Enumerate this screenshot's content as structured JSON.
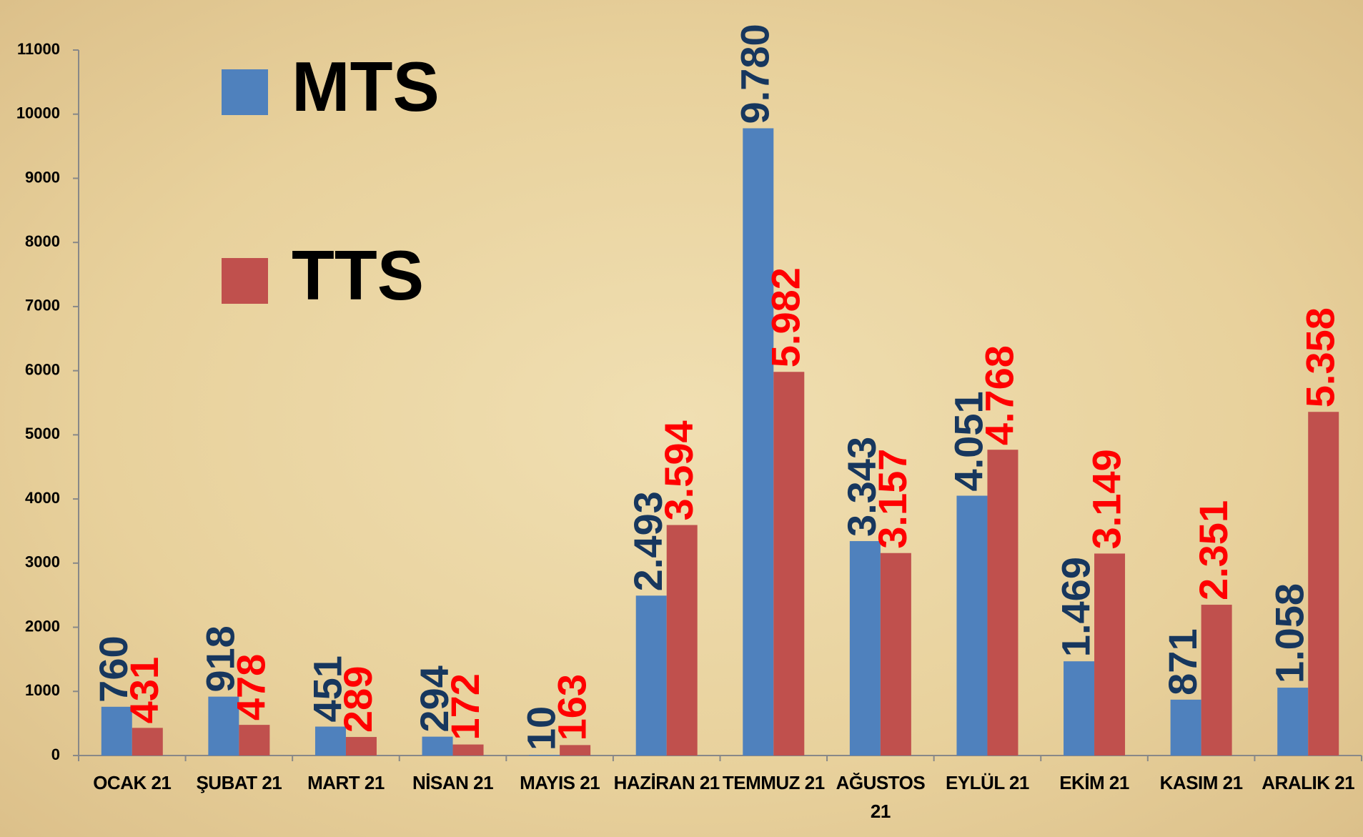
{
  "chart_data": {
    "type": "bar",
    "categories": [
      "OCAK 21",
      "ŞUBAT 21",
      "MART 21",
      "NİSAN 21",
      "MAYIS 21",
      "HAZİRAN 21",
      "TEMMUZ 21",
      "AĞUSTOS 21",
      "EYLÜL 21",
      "EKİM 21",
      "KASIM 21",
      "ARALIK 21"
    ],
    "series": [
      {
        "name": "MTS",
        "color": "#4f81bd",
        "label_color": "#17375e",
        "values": [
          760,
          918,
          451,
          294,
          10,
          2493,
          9780,
          3343,
          4051,
          1469,
          871,
          1058
        ],
        "value_labels": [
          "760",
          "918",
          "451",
          "294",
          "10",
          "2.493",
          "9.780",
          "3.343",
          "4.051",
          "1.469",
          "871",
          "1.058"
        ]
      },
      {
        "name": "TTS",
        "color": "#c0504d",
        "label_color": "#ff0000",
        "values": [
          431,
          478,
          289,
          172,
          163,
          3594,
          5982,
          3157,
          4768,
          3149,
          2351,
          5358
        ],
        "value_labels": [
          "431",
          "478",
          "289",
          "172",
          "163",
          "3.594",
          "5.982",
          "3.157",
          "4.768",
          "3.149",
          "2.351",
          "5.358"
        ]
      }
    ],
    "ylim": [
      0,
      11000
    ],
    "yticks": [
      0,
      1000,
      2000,
      3000,
      4000,
      5000,
      6000,
      7000,
      8000,
      9000,
      10000,
      11000
    ],
    "grid": false,
    "legend": "top-left"
  }
}
